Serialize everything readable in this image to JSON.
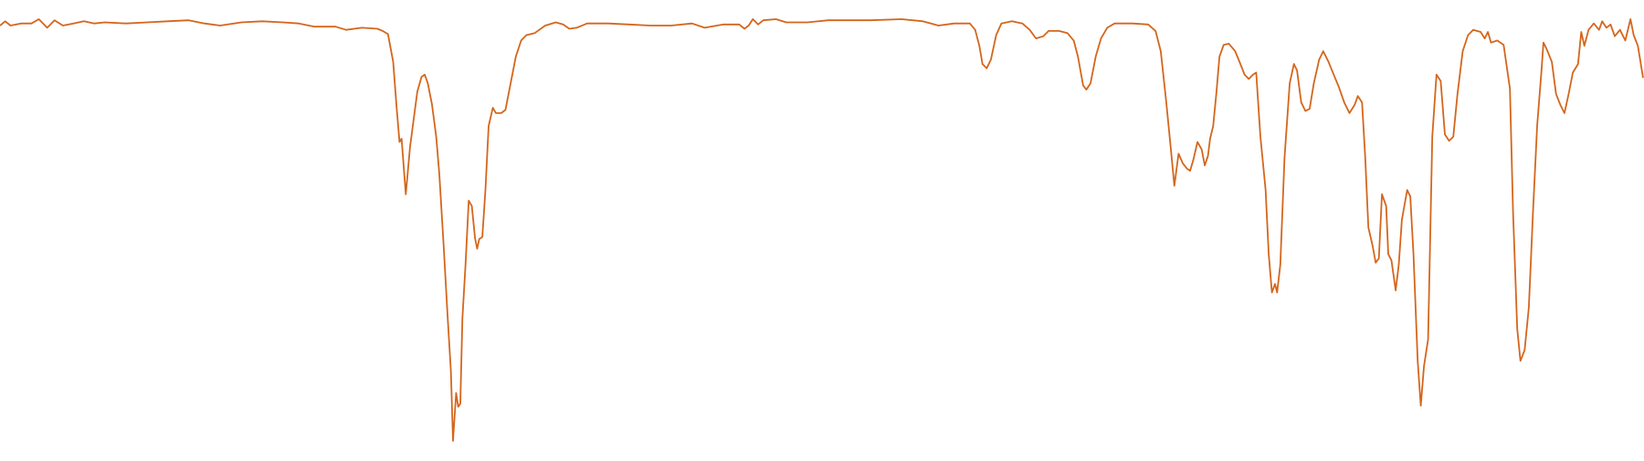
{
  "chart_data": {
    "type": "line",
    "color": "#d4661c",
    "x": [
      0,
      5,
      10,
      20,
      30,
      37,
      45,
      52,
      60,
      70,
      80,
      90,
      100,
      120,
      140,
      160,
      180,
      195,
      210,
      230,
      250,
      270,
      285,
      300,
      320,
      330,
      345,
      360,
      365,
      370,
      375,
      378,
      381,
      383,
      387,
      391,
      395,
      398,
      402,
      405,
      408,
      412,
      416,
      419,
      423,
      427,
      430,
      432,
      435,
      437,
      439,
      441,
      444,
      447,
      450,
      453,
      455,
      457,
      460,
      463,
      466,
      470,
      473,
      478,
      482,
      487,
      492,
      497,
      502,
      510,
      520,
      530,
      537,
      543,
      550,
      560,
      580,
      600,
      620,
      640,
      660,
      672,
      690,
      705,
      710,
      714,
      718,
      723,
      728,
      740,
      750,
      770,
      790,
      830,
      860,
      880,
      895,
      910,
      925,
      930,
      934,
      937,
      941,
      945,
      950,
      955,
      965,
      975,
      982,
      988,
      995,
      1000,
      1010,
      1018,
      1024,
      1028,
      1033,
      1036,
      1040,
      1045,
      1050,
      1056,
      1063,
      1080,
      1095,
      1102,
      1107,
      1112,
      1116,
      1120,
      1124,
      1128,
      1132,
      1135,
      1138,
      1142,
      1146,
      1149,
      1152,
      1154,
      1157,
      1160,
      1163,
      1167,
      1172,
      1178,
      1183,
      1187,
      1191,
      1195,
      1198,
      1202,
      1207,
      1210,
      1213,
      1216,
      1218,
      1221,
      1225,
      1230,
      1234,
      1237,
      1241,
      1245,
      1249,
      1253,
      1258,
      1262,
      1267,
      1272,
      1277,
      1282,
      1287,
      1292,
      1295,
      1299,
      1302,
      1305,
      1309,
      1312,
      1315,
      1318,
      1322,
      1324,
      1327,
      1331,
      1334,
      1337,
      1342,
      1345,
      1348,
      1352,
      1355,
      1358,
      1362,
      1366,
      1370,
      1374,
      1378,
      1382,
      1386,
      1390,
      1395,
      1400,
      1405,
      1412,
      1416,
      1419,
      1422,
      1428,
      1434,
      1440,
      1443,
      1447,
      1450,
      1454,
      1458,
      1462,
      1466,
      1470,
      1472,
      1475,
      1480,
      1484,
      1488,
      1492,
      1496,
      1500,
      1505,
      1508,
      1511,
      1515,
      1520,
      1525,
      1528,
      1532,
      1536,
      1540,
      1545,
      1550,
      1555,
      1558,
      1562,
      1567
    ],
    "values": [
      404,
      408,
      404,
      406,
      406,
      410,
      402,
      409,
      404,
      406,
      408,
      406,
      407,
      406,
      407,
      408,
      409,
      406,
      404,
      407,
      408,
      407,
      406,
      403,
      403,
      400,
      402,
      401,
      399,
      396,
      370,
      330,
      295,
      298,
      246,
      290,
      320,
      342,
      356,
      358,
      350,
      330,
      300,
      265,
      200,
      130,
      80,
      15,
      60,
      47,
      50,
      130,
      180,
      240,
      235,
      205,
      195,
      204,
      206,
      250,
      310,
      327,
      322,
      322,
      325,
      350,
      375,
      390,
      395,
      397,
      404,
      407,
      405,
      401,
      402,
      406,
      406,
      405,
      404,
      404,
      406,
      402,
      405,
      405,
      401,
      404,
      410,
      405,
      409,
      410,
      407,
      407,
      409,
      409,
      410,
      408,
      404,
      406,
      406,
      400,
      385,
      368,
      364,
      372,
      395,
      406,
      408,
      406,
      400,
      392,
      394,
      399,
      399,
      397,
      390,
      375,
      348,
      344,
      350,
      375,
      392,
      402,
      406,
      406,
      405,
      399,
      380,
      335,
      295,
      254,
      284,
      275,
      270,
      268,
      278,
      295,
      288,
      273,
      282,
      298,
      310,
      340,
      375,
      386,
      387,
      380,
      368,
      358,
      354,
      358,
      360,
      300,
      250,
      190,
      154,
      162,
      154,
      180,
      280,
      350,
      368,
      362,
      332,
      324,
      326,
      350,
      372,
      380,
      370,
      358,
      346,
      332,
      322,
      330,
      338,
      332,
      280,
      215,
      198,
      182,
      186,
      246,
      235,
      190,
      184,
      156,
      180,
      222,
      250,
      244,
      190,
      90,
      48,
      85,
      110,
      300,
      358,
      352,
      302,
      296,
      300,
      340,
      380,
      395,
      400,
      398,
      392,
      398,
      388,
      390,
      386,
      345,
      230,
      120,
      90,
      100,
      140,
      230,
      310,
      360,
      388,
      382,
      370,
      340,
      330,
      322,
      340,
      360,
      368,
      398,
      385,
      400,
      406,
      400,
      408,
      402,
      405,
      394,
      400,
      390,
      410,
      395,
      385,
      355
    ]
  }
}
